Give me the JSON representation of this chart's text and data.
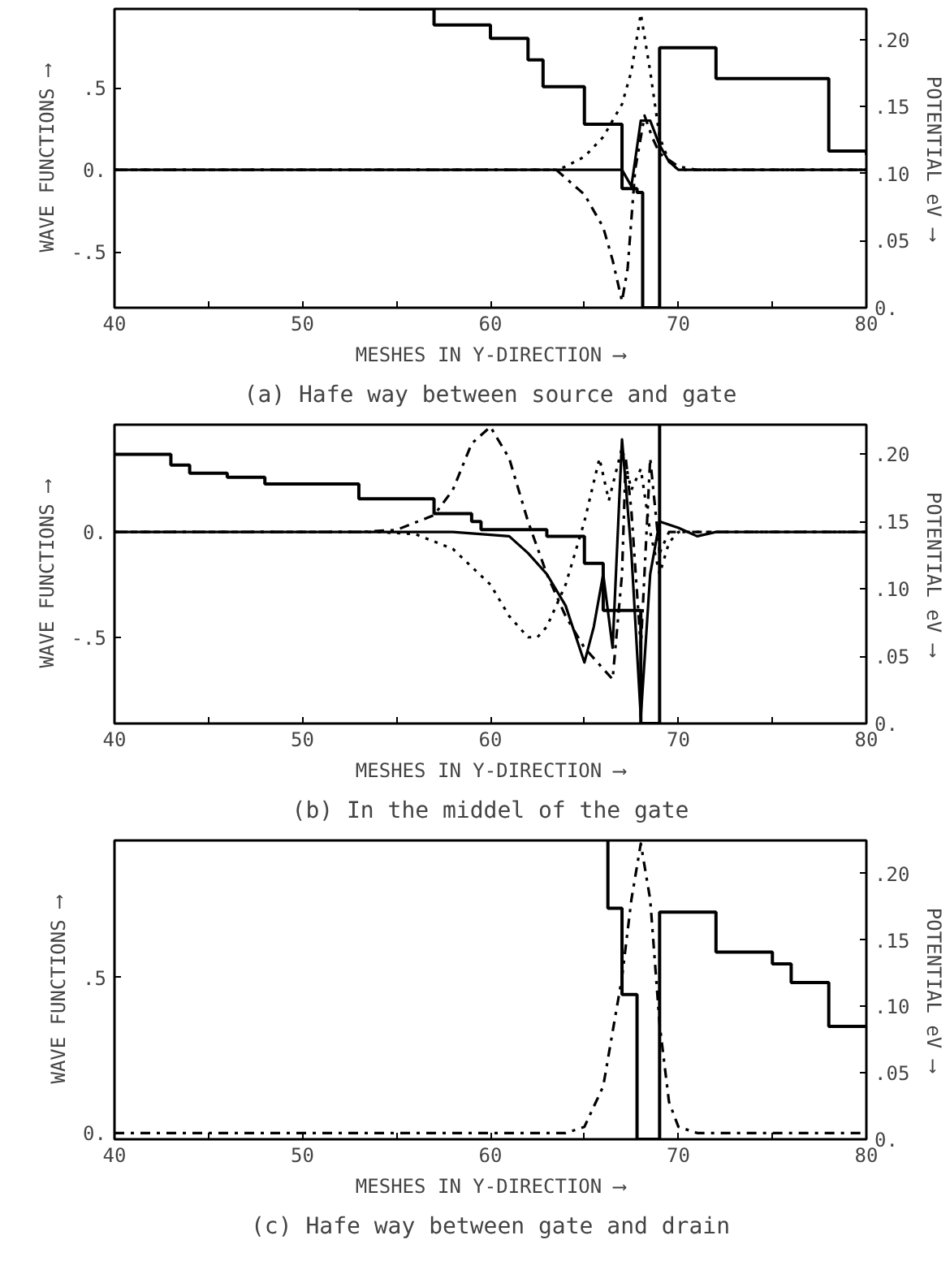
{
  "chart_data": [
    {
      "type": "line",
      "title": "(a) Hafe way between source and gate",
      "xlabel": "MESHES IN Y-DIRECTION ⟶",
      "ylabel": "WAVE FUNCTIONS ⟶",
      "y2label": "POTENTIAL eV ⟶",
      "xlim": [
        40,
        80
      ],
      "xticks": [
        40,
        {
          "value": 45,
          "label": null
        },
        50,
        {
          "value": 55,
          "label": null
        },
        60,
        {
          "value": 65,
          "label": null
        },
        70,
        {
          "value": 75,
          "label": null
        },
        80
      ],
      "ylim": [
        -0.84,
        0.98
      ],
      "yticks": [
        {
          "value": -0.5,
          "label": "-.5"
        },
        {
          "value": 0,
          "label": "0."
        },
        {
          "value": 0.5,
          "label": ".5"
        }
      ],
      "y2lim": [
        0,
        0.223
      ],
      "y2ticks": [
        {
          "value": 0,
          "label": "0."
        },
        {
          "value": 0.05,
          "label": ".05"
        },
        {
          "value": 0.1,
          "label": ".10"
        },
        {
          "value": 0.15,
          "label": ".15"
        },
        {
          "value": 0.2,
          "label": ".20"
        }
      ],
      "grid": false,
      "series": [
        {
          "type": "step",
          "axis": "y2",
          "color": "#000000",
          "line_style": "solid",
          "x": [
            53,
            57,
            60,
            62,
            62.8,
            65,
            67,
            67.8,
            68.1,
            69,
            72,
            78,
            80
          ],
          "values": [
            0.223,
            0.211,
            0.201,
            0.185,
            0.165,
            0.137,
            0.089,
            0.086,
            0,
            0.194,
            0.171,
            0.117,
            0.114
          ]
        },
        {
          "color": "#000000",
          "line_style": "dotted",
          "x": [
            40,
            63.5,
            64,
            65,
            66,
            67,
            67.5,
            68,
            68.5,
            69,
            69.5,
            70,
            80
          ],
          "values": [
            0,
            0,
            0.02,
            0.08,
            0.2,
            0.4,
            0.6,
            0.95,
            0.6,
            0.2,
            0.05,
            0,
            0
          ]
        },
        {
          "color": "#000000",
          "line_style": "dashdot",
          "x": [
            40,
            63.5,
            64,
            65,
            66,
            66.5,
            67,
            67.3,
            67.7,
            68.2,
            68.6,
            69,
            70,
            71,
            80
          ],
          "values": [
            0,
            0,
            -0.05,
            -0.15,
            -0.35,
            -0.55,
            -0.8,
            -0.6,
            0,
            0.33,
            0.2,
            0.1,
            0.02,
            0,
            0
          ]
        },
        {
          "color": "#000000",
          "line_style": "solid",
          "x": [
            40,
            67,
            67.5,
            68,
            68.5,
            69,
            69.5,
            70,
            80
          ],
          "values": [
            0,
            0,
            -0.1,
            0.3,
            0.3,
            0.15,
            0.05,
            0,
            0
          ]
        }
      ]
    },
    {
      "type": "line",
      "title": "(b) In the middel of the gate",
      "xlabel": "MESHES IN Y-DIRECTION ⟶",
      "ylabel": "WAVE FUNCTIONS ⟶",
      "y2label": "POTENTIAL eV ⟶",
      "xlim": [
        40,
        80
      ],
      "xticks": [
        40,
        {
          "value": 45,
          "label": null
        },
        50,
        {
          "value": 55,
          "label": null
        },
        60,
        {
          "value": 65,
          "label": null
        },
        70,
        {
          "value": 75,
          "label": null
        },
        80
      ],
      "ylim": [
        -0.91,
        0.51
      ],
      "yticks": [
        {
          "value": -0.5,
          "label": "-.5"
        },
        {
          "value": 0,
          "label": "0."
        }
      ],
      "y2lim": [
        0,
        0.222
      ],
      "y2ticks": [
        {
          "value": 0,
          "label": "0."
        },
        {
          "value": 0.05,
          "label": ".05"
        },
        {
          "value": 0.1,
          "label": ".10"
        },
        {
          "value": 0.15,
          "label": ".15"
        },
        {
          "value": 0.2,
          "label": ".20"
        }
      ],
      "grid": false,
      "series": [
        {
          "type": "step",
          "axis": "y2",
          "color": "#000000",
          "line_style": "solid",
          "x": [
            40,
            43,
            44,
            46,
            48,
            53,
            57,
            59,
            59.5,
            63,
            65,
            66,
            68,
            69
          ],
          "values": [
            0.2,
            0.192,
            0.186,
            0.183,
            0.178,
            0.167,
            0.156,
            0.15,
            0.144,
            0.139,
            0.119,
            0.084,
            0,
            0.222
          ]
        },
        {
          "color": "#000000",
          "line_style": "dotted",
          "x": [
            40,
            54,
            56,
            58,
            60,
            61,
            62,
            62.5,
            63,
            64,
            65,
            65.8,
            66.3,
            67,
            67.5,
            68,
            68.5,
            69,
            69.5,
            70,
            80
          ],
          "values": [
            0,
            0,
            -0.01,
            -0.08,
            -0.25,
            -0.4,
            -0.5,
            -0.5,
            -0.45,
            -0.25,
            0.05,
            0.35,
            0.15,
            0.4,
            0.2,
            0.3,
            0,
            -0.2,
            -0.05,
            0,
            0
          ]
        },
        {
          "color": "#000000",
          "line_style": "dashdot",
          "x": [
            40,
            53,
            55,
            57,
            58,
            59,
            60,
            61,
            62,
            63,
            64,
            65,
            66,
            66.5,
            67,
            67.2,
            67.5,
            68,
            68.5,
            69,
            69.5,
            80
          ],
          "values": [
            0,
            0,
            0.01,
            0.08,
            0.2,
            0.42,
            0.5,
            0.35,
            0.05,
            -0.2,
            -0.4,
            -0.55,
            -0.65,
            -0.7,
            -0.2,
            0.35,
            0.1,
            -0.55,
            0.35,
            -0.1,
            0,
            0
          ]
        },
        {
          "color": "#000000",
          "line_style": "solid",
          "x": [
            40,
            58,
            61,
            62,
            63,
            64,
            65,
            65.5,
            66,
            66.5,
            67,
            67.5,
            68,
            68.5,
            69,
            70,
            71,
            72,
            80
          ],
          "values": [
            0,
            0,
            -0.02,
            -0.1,
            -0.2,
            -0.35,
            -0.62,
            -0.45,
            -0.2,
            -0.55,
            0.44,
            -0.1,
            -0.88,
            -0.2,
            0.05,
            0.02,
            -0.02,
            0,
            0
          ]
        }
      ]
    },
    {
      "type": "line",
      "title": "(c) Hafe way between gate and drain",
      "xlabel": "MESHES IN Y-DIRECTION ⟶",
      "ylabel": "WAVE FUNCTIONS ⟶",
      "y2label": "POTENTIAL eV ⟶",
      "xlim": [
        40,
        80
      ],
      "xticks": [
        40,
        {
          "value": 45,
          "label": null
        },
        50,
        {
          "value": 55,
          "label": null
        },
        60,
        {
          "value": 65,
          "label": null
        },
        70,
        {
          "value": 75,
          "label": null
        },
        80
      ],
      "ylim": [
        -0.02,
        0.94
      ],
      "yticks": [
        {
          "value": 0,
          "label": "0."
        },
        {
          "value": 0.5,
          "label": ".5"
        }
      ],
      "y2lim": [
        0,
        0.225
      ],
      "y2ticks": [
        {
          "value": 0,
          "label": "0."
        },
        {
          "value": 0.05,
          "label": ".05"
        },
        {
          "value": 0.1,
          "label": ".10"
        },
        {
          "value": 0.15,
          "label": ".15"
        },
        {
          "value": 0.2,
          "label": ".20"
        }
      ],
      "grid": false,
      "series": [
        {
          "type": "step",
          "axis": "y2",
          "color": "#000000",
          "line_style": "solid",
          "x": [
            66.2,
            66.25,
            67,
            67.8,
            69,
            72,
            75,
            76,
            78,
            80
          ],
          "values": [
            0.225,
            0.174,
            0.109,
            0,
            0.171,
            0.141,
            0.132,
            0.118,
            0.085,
            0.085
          ]
        },
        {
          "color": "#000000",
          "line_style": "dashdot",
          "x": [
            40,
            64,
            65,
            66,
            67,
            67.5,
            68,
            68.5,
            69,
            69.5,
            70,
            71,
            80
          ],
          "values": [
            0,
            0,
            0.02,
            0.15,
            0.5,
            0.75,
            0.93,
            0.75,
            0.35,
            0.1,
            0.02,
            0,
            0
          ]
        }
      ]
    }
  ]
}
